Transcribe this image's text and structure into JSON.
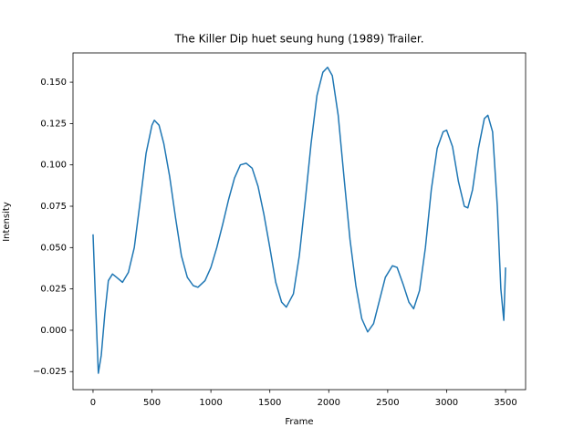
{
  "chart_data": {
    "type": "line",
    "title": "The Killer  Dip huet seung hung (1989) Trailer.",
    "x_label": "Frame",
    "y_label": "Intensity",
    "x": [
      0,
      25,
      45,
      70,
      100,
      130,
      165,
      200,
      250,
      300,
      350,
      400,
      450,
      500,
      520,
      560,
      600,
      650,
      700,
      750,
      800,
      850,
      890,
      950,
      1000,
      1050,
      1100,
      1150,
      1200,
      1250,
      1300,
      1350,
      1400,
      1450,
      1500,
      1550,
      1600,
      1640,
      1700,
      1750,
      1800,
      1850,
      1900,
      1950,
      1990,
      2030,
      2080,
      2130,
      2180,
      2230,
      2280,
      2330,
      2380,
      2430,
      2480,
      2540,
      2580,
      2630,
      2680,
      2720,
      2770,
      2820,
      2870,
      2920,
      2970,
      3000,
      3050,
      3100,
      3150,
      3180,
      3220,
      3270,
      3320,
      3350,
      3390,
      3430,
      3460,
      3485,
      3500
    ],
    "series": [
      {
        "name": "Intensity",
        "color": "#1f77b4",
        "values": [
          0.058,
          0.01,
          -0.026,
          -0.015,
          0.01,
          0.03,
          0.034,
          0.032,
          0.029,
          0.035,
          0.05,
          0.078,
          0.107,
          0.124,
          0.127,
          0.124,
          0.113,
          0.093,
          0.068,
          0.045,
          0.032,
          0.027,
          0.026,
          0.03,
          0.038,
          0.05,
          0.064,
          0.079,
          0.092,
          0.1,
          0.101,
          0.098,
          0.087,
          0.07,
          0.05,
          0.029,
          0.017,
          0.014,
          0.022,
          0.045,
          0.078,
          0.113,
          0.142,
          0.156,
          0.159,
          0.154,
          0.13,
          0.092,
          0.055,
          0.027,
          0.007,
          -0.001,
          0.004,
          0.018,
          0.032,
          0.039,
          0.038,
          0.028,
          0.017,
          0.013,
          0.024,
          0.05,
          0.085,
          0.11,
          0.12,
          0.121,
          0.111,
          0.09,
          0.075,
          0.074,
          0.085,
          0.11,
          0.128,
          0.13,
          0.12,
          0.075,
          0.025,
          0.006,
          0.038
        ]
      }
    ],
    "xlim": [
      -170,
      3670
    ],
    "ylim": [
      -0.0359,
      0.1677
    ],
    "xticks": [
      0,
      500,
      1000,
      1500,
      2000,
      2500,
      3000,
      3500
    ],
    "yticks": [
      {
        "value": -0.025,
        "label": "−0.025"
      },
      {
        "value": 0,
        "label": "0.000"
      },
      0.025,
      {
        "value": 0.05,
        "label": "0.050"
      },
      0.075,
      {
        "value": 0.1,
        "label": "0.100"
      },
      0.125,
      {
        "value": 0.15,
        "label": "0.150"
      }
    ],
    "grid": false
  }
}
